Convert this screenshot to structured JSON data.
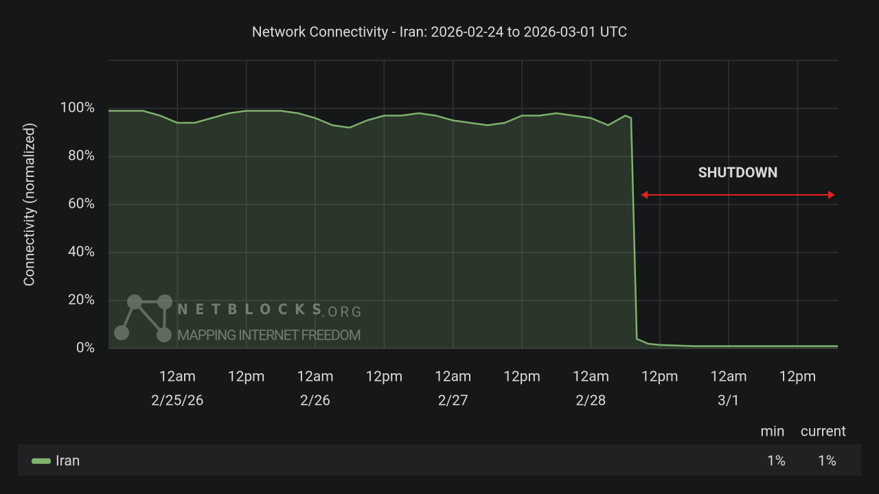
{
  "chart_data": {
    "type": "line",
    "title": "Network Connectivity - Iran: 2026-02-24 to 2026-03-01 UTC",
    "y_label": "Connectivity (normalized)",
    "x": [
      "2026-02-24T12:00",
      "2026-02-24T15:00",
      "2026-02-24T18:00",
      "2026-02-24T21:00",
      "2026-02-25T00:00",
      "2026-02-25T03:00",
      "2026-02-25T06:00",
      "2026-02-25T09:00",
      "2026-02-25T12:00",
      "2026-02-25T15:00",
      "2026-02-25T18:00",
      "2026-02-25T21:00",
      "2026-02-26T00:00",
      "2026-02-26T03:00",
      "2026-02-26T06:00",
      "2026-02-26T09:00",
      "2026-02-26T12:00",
      "2026-02-26T15:00",
      "2026-02-26T18:00",
      "2026-02-26T21:00",
      "2026-02-27T00:00",
      "2026-02-27T03:00",
      "2026-02-27T06:00",
      "2026-02-27T09:00",
      "2026-02-27T12:00",
      "2026-02-27T15:00",
      "2026-02-27T18:00",
      "2026-02-27T21:00",
      "2026-02-28T00:00",
      "2026-02-28T03:00",
      "2026-02-28T06:00",
      "2026-02-28T07:00",
      "2026-02-28T08:00",
      "2026-02-28T09:00",
      "2026-02-28T10:00",
      "2026-02-28T12:00",
      "2026-02-28T18:00",
      "2026-03-01T00:00",
      "2026-03-01T06:00",
      "2026-03-01T12:00",
      "2026-03-01T19:00"
    ],
    "series": [
      {
        "name": "Iran",
        "color": "#7eb26d",
        "values": [
          99,
          99,
          99,
          97,
          94,
          94,
          96,
          98,
          99,
          99,
          99,
          98,
          96,
          93,
          92,
          95,
          97,
          97,
          98,
          97,
          95,
          94,
          93,
          94,
          97,
          97,
          98,
          97,
          96,
          93,
          97,
          96,
          4,
          3,
          2,
          1.5,
          1,
          1,
          1,
          1,
          1
        ]
      }
    ],
    "xlim": [
      "2026-02-24T12:00",
      "2026-03-01T19:00"
    ],
    "xticks": [
      {
        "value": "2026-02-25T00:00",
        "label": "12am"
      },
      {
        "value": "2026-02-25T12:00",
        "label": "12pm"
      },
      {
        "value": "2026-02-26T00:00",
        "label": "12am"
      },
      {
        "value": "2026-02-26T12:00",
        "label": "12pm"
      },
      {
        "value": "2026-02-27T00:00",
        "label": "12am"
      },
      {
        "value": "2026-02-27T12:00",
        "label": "12pm"
      },
      {
        "value": "2026-02-28T00:00",
        "label": "12am"
      },
      {
        "value": "2026-02-28T12:00",
        "label": "12pm"
      },
      {
        "value": "2026-03-01T00:00",
        "label": "12am"
      },
      {
        "value": "2026-03-01T12:00",
        "label": "12pm"
      }
    ],
    "xtick_dates": [
      {
        "value": "2026-02-25T00:00",
        "label": "2/25/26"
      },
      {
        "value": "2026-02-26T00:00",
        "label": "2/26"
      },
      {
        "value": "2026-02-27T00:00",
        "label": "2/27"
      },
      {
        "value": "2026-02-28T00:00",
        "label": "2/28"
      },
      {
        "value": "2026-03-01T00:00",
        "label": "3/1"
      }
    ],
    "ylim": [
      0,
      120
    ],
    "yticks": [
      {
        "value": 0,
        "label": "0%"
      },
      {
        "value": 20,
        "label": "20%"
      },
      {
        "value": 40,
        "label": "40%"
      },
      {
        "value": 60,
        "label": "60%"
      },
      {
        "value": 80,
        "label": "80%"
      },
      {
        "value": 100,
        "label": "100%"
      }
    ],
    "grid": true,
    "annotation": {
      "text": "SHUTDOWN",
      "x_start": "2026-02-28T08:00",
      "x_end": "2026-03-01T19:00",
      "y": 64,
      "color": "#f0a429",
      "arrow_color": "#e02020"
    },
    "legend_stats": {
      "columns": [
        "min",
        "current"
      ],
      "values": [
        1,
        1
      ],
      "value_labels": [
        "1%",
        "1%"
      ]
    },
    "watermark": {
      "brand": "NETBLOCKS",
      "suffix": ".ORG",
      "tagline": "MAPPING INTERNET FREEDOM"
    }
  }
}
